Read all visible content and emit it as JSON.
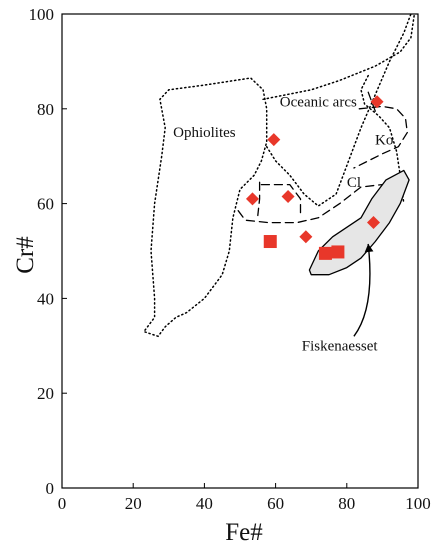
{
  "chart_data": {
    "type": "scatter",
    "xlabel": "Fe#",
    "ylabel": "Cr#",
    "xlim": [
      0,
      100
    ],
    "ylim": [
      0,
      100
    ],
    "xticks": [
      "0",
      "20",
      "40",
      "60",
      "80",
      "100"
    ],
    "yticks": [
      "0",
      "20",
      "40",
      "60",
      "80",
      "100"
    ],
    "grid": false,
    "colors": {
      "marker": "#e8372a",
      "field_fill": "#e6e6e6",
      "line": "#000000"
    },
    "series": [
      {
        "marker": "diamond",
        "points": [
          [
            59.5,
            73.5
          ],
          [
            53.5,
            61
          ],
          [
            63.5,
            61.5
          ],
          [
            68.5,
            53
          ],
          [
            87.5,
            56
          ],
          [
            88.5,
            81.5
          ]
        ]
      },
      {
        "marker": "square",
        "points": [
          [
            58.5,
            52
          ],
          [
            74,
            49.5
          ],
          [
            77.5,
            49.8
          ]
        ]
      }
    ],
    "regions": [
      {
        "label": "Ophiolites",
        "style": "dotted",
        "label_at": [
          40,
          74
        ],
        "points": [
          [
            27,
            32
          ],
          [
            23,
            33
          ],
          [
            26,
            36
          ],
          [
            26,
            40
          ],
          [
            25,
            50
          ],
          [
            26,
            60
          ],
          [
            28,
            70
          ],
          [
            29,
            76
          ],
          [
            27.5,
            82
          ],
          [
            30,
            84
          ],
          [
            40,
            85
          ],
          [
            53,
            86.5
          ],
          [
            56.5,
            84
          ],
          [
            57.5,
            80
          ],
          [
            57.5,
            73
          ],
          [
            56,
            69
          ],
          [
            54,
            66
          ],
          [
            50,
            63
          ],
          [
            48,
            57
          ],
          [
            47,
            50
          ],
          [
            45,
            45
          ],
          [
            40,
            40
          ],
          [
            35,
            37
          ],
          [
            32,
            36
          ],
          [
            29,
            34
          ],
          [
            27,
            32
          ]
        ]
      },
      {
        "label": "Oceanic arcs",
        "style": "dotted",
        "label_at": [
          72,
          80.5
        ],
        "points": [
          [
            56.5,
            82
          ],
          [
            70,
            84
          ],
          [
            78,
            86
          ],
          [
            88,
            89
          ],
          [
            95,
            92
          ],
          [
            98,
            95
          ],
          [
            99,
            100
          ]
        ]
      },
      {
        "style": "dotted",
        "points": [
          [
            57.5,
            72
          ],
          [
            60,
            69
          ],
          [
            64,
            66
          ],
          [
            68,
            62
          ],
          [
            72,
            59.5
          ],
          [
            77,
            62
          ],
          [
            80,
            68
          ],
          [
            84,
            76
          ],
          [
            88,
            83
          ],
          [
            92,
            90
          ],
          [
            96,
            96
          ],
          [
            98,
            100
          ]
        ]
      },
      {
        "style": "dotted",
        "points": [
          [
            86,
            87
          ],
          [
            84,
            84
          ],
          [
            85,
            81
          ],
          [
            89,
            78.5
          ],
          [
            92,
            76
          ],
          [
            94,
            71
          ],
          [
            95,
            66
          ],
          [
            96,
            60
          ]
        ]
      },
      {
        "label": "Ko",
        "style": "dashed",
        "label_at": [
          90.5,
          72.5
        ],
        "points": [
          [
            83.5,
            80
          ],
          [
            90,
            80.5
          ],
          [
            94,
            80
          ],
          [
            96.5,
            78
          ],
          [
            97,
            75
          ],
          [
            94.5,
            72
          ],
          [
            90,
            70.5
          ],
          [
            86,
            69
          ],
          [
            82,
            67.5
          ]
        ]
      },
      {
        "label": "Cl",
        "style": "dashed",
        "label_at": [
          82,
          63.5
        ],
        "points": [
          [
            49.5,
            58.5
          ],
          [
            51.5,
            56.5
          ],
          [
            58,
            56
          ],
          [
            66,
            56
          ],
          [
            72,
            57
          ],
          [
            78,
            60
          ],
          [
            84,
            63.5
          ],
          [
            90,
            64
          ]
        ]
      },
      {
        "style": "dashed",
        "points": [
          [
            56,
            64
          ],
          [
            59,
            64
          ],
          [
            64,
            64
          ],
          [
            67,
            61
          ],
          [
            67,
            58
          ]
        ]
      },
      {
        "style": "dashed",
        "points": [
          [
            55.5,
            64.5
          ],
          [
            55.5,
            61
          ],
          [
            55,
            57.5
          ]
        ]
      },
      {
        "style": "dashed",
        "points": [
          [
            86,
            83.5
          ],
          [
            87,
            81.5
          ],
          [
            88,
            79.5
          ]
        ]
      },
      {
        "label": "Fiskenaesset",
        "style": "solid",
        "filled": true,
        "label_at": [
          78,
          29
        ],
        "points": [
          [
            69.5,
            46
          ],
          [
            72,
            50
          ],
          [
            76,
            53
          ],
          [
            80,
            55
          ],
          [
            84,
            57
          ],
          [
            87,
            61
          ],
          [
            91,
            65
          ],
          [
            96,
            67
          ],
          [
            97.5,
            65
          ],
          [
            95,
            60
          ],
          [
            92,
            56
          ],
          [
            88,
            52
          ],
          [
            84,
            48.5
          ],
          [
            80,
            46.5
          ],
          [
            75,
            45
          ],
          [
            70,
            45
          ],
          [
            69.5,
            46
          ]
        ]
      }
    ],
    "annotation": {
      "text": "Fiskenaesset",
      "arrow_from": [
        82,
        32
      ],
      "arrow_to": [
        86,
        51.5
      ]
    }
  }
}
